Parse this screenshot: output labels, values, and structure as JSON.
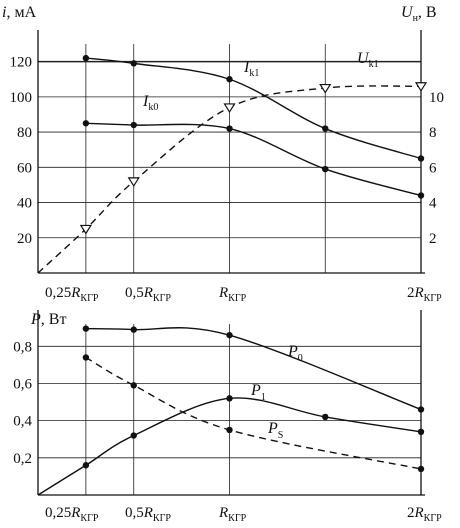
{
  "chart_data": [
    {
      "type": "line",
      "xlabel": "",
      "ylabel": "i, мА",
      "y2label": "Uн, В",
      "x_ticks": [
        "0,25RКГР",
        "0,5RКГР",
        "RКГР",
        "2RКГР"
      ],
      "x_tick_values": [
        0.25,
        0.5,
        1.0,
        2.0
      ],
      "ylim": [
        0,
        130
      ],
      "y_ticks": [
        "20",
        "40",
        "60",
        "80",
        "100",
        "120"
      ],
      "y2lim": [
        0,
        13
      ],
      "y2_ticks": [
        "2",
        "4",
        "6",
        "8",
        "10"
      ],
      "grid": true,
      "series": [
        {
          "name": "Ik1",
          "axis": "left",
          "style": "solid",
          "marker": "dot",
          "color": "#111111",
          "x": [
            0.25,
            0.5,
            1.0,
            1.5,
            2.0
          ],
          "y": [
            122,
            119,
            110,
            82,
            65
          ]
        },
        {
          "name": "Ik0",
          "axis": "left",
          "style": "solid",
          "marker": "dot",
          "color": "#111111",
          "x": [
            0.25,
            0.5,
            1.0,
            1.5,
            2.0
          ],
          "y": [
            85,
            84,
            82,
            59,
            44
          ]
        },
        {
          "name": "Uk1",
          "axis": "right",
          "style": "dashed",
          "marker": "triangle-down",
          "color": "#111111",
          "x": [
            0,
            0.25,
            0.5,
            1.0,
            1.5,
            2.0
          ],
          "y": [
            0,
            2.5,
            5.2,
            9.4,
            10.5,
            10.6
          ],
          "markers_at": [
            0.25,
            0.5,
            1.0,
            1.5,
            2.0
          ]
        }
      ]
    },
    {
      "type": "line",
      "xlabel": "",
      "ylabel": "P, Вт",
      "x_ticks": [
        "0,25RКГР",
        "0,5RКГР",
        "RКГР",
        "2RКГР"
      ],
      "x_tick_values": [
        0.25,
        0.5,
        1.0,
        2.0
      ],
      "ylim": [
        0,
        0.92
      ],
      "y_ticks": [
        "0,2",
        "0,4",
        "0,6",
        "0,8"
      ],
      "grid": true,
      "series": [
        {
          "name": "P0",
          "style": "solid",
          "marker": "dot",
          "color": "#111111",
          "x": [
            0.25,
            0.5,
            1.0,
            2.0
          ],
          "y": [
            0.895,
            0.89,
            0.86,
            0.46
          ]
        },
        {
          "name": "P1",
          "style": "solid",
          "marker": "dot",
          "color": "#111111",
          "x": [
            0,
            0.25,
            0.5,
            1.0,
            1.5,
            2.0
          ],
          "y": [
            0,
            0.16,
            0.32,
            0.52,
            0.42,
            0.34
          ],
          "markers_at": [
            0.25,
            0.5,
            1.0,
            1.5,
            2.0
          ]
        },
        {
          "name": "PS",
          "style": "dashed",
          "marker": "dot",
          "color": "#111111",
          "x": [
            0.25,
            0.5,
            1.0,
            2.0
          ],
          "y": [
            0.74,
            0.59,
            0.35,
            0.14
          ]
        }
      ]
    }
  ],
  "labels": {
    "top_y_main": "i",
    "top_y_unit": ", мА",
    "top_y2_main": "U",
    "top_y2_sub": "н",
    "top_y2_unit": ", В",
    "ik1_main": "I",
    "ik1_sub": "k1",
    "ik0_main": "I",
    "ik0_sub": "k0",
    "uk1_main": "U",
    "uk1_sub": "k1",
    "bot_y_main": "P",
    "bot_y_unit": ", Вт",
    "p0_main": "P",
    "p0_sub": "0",
    "p1_main": "P",
    "p1_sub": "1",
    "ps_main": "P",
    "ps_sub": "S",
    "x025_pre": "0,25",
    "x05_pre": "0,5",
    "x2_pre": "2",
    "x_R": "R",
    "x_sub": "КГР"
  }
}
